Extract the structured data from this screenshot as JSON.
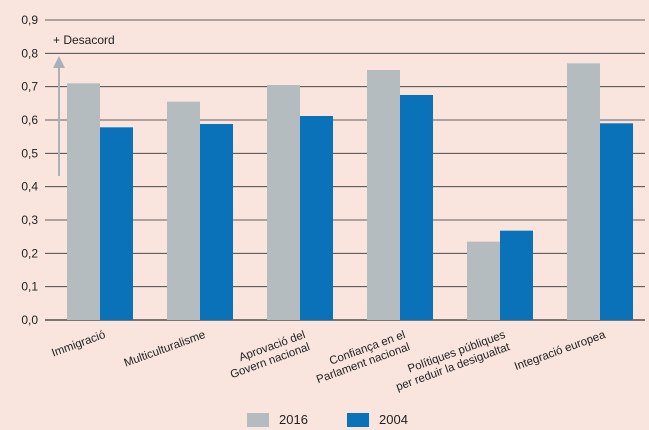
{
  "chart_data": {
    "type": "bar",
    "categories": [
      [
        "Immigració"
      ],
      [
        "Multiculturalisme"
      ],
      [
        "Aprovació del",
        "Govern nacional"
      ],
      [
        "Confiança en el",
        "Parlament nacional"
      ],
      [
        "Polítiques públiques",
        "per reduir la desigualtat"
      ],
      [
        "Integració europea"
      ]
    ],
    "series": [
      {
        "name": "2016",
        "color": "#b4bcc0",
        "values": [
          0.71,
          0.655,
          0.705,
          0.75,
          0.235,
          0.77
        ]
      },
      {
        "name": "2004",
        "color": "#0a72b8",
        "values": [
          0.578,
          0.588,
          0.612,
          0.675,
          0.268,
          0.59
        ]
      }
    ],
    "ylim": [
      0,
      0.9
    ],
    "yticks": [
      "0,0",
      "0,1",
      "0,2",
      "0,3",
      "0,4",
      "0,5",
      "0,6",
      "0,7",
      "0,8",
      "0,9"
    ],
    "annotation": "+ Desacord",
    "grid": true,
    "legend_position": "bottom"
  }
}
